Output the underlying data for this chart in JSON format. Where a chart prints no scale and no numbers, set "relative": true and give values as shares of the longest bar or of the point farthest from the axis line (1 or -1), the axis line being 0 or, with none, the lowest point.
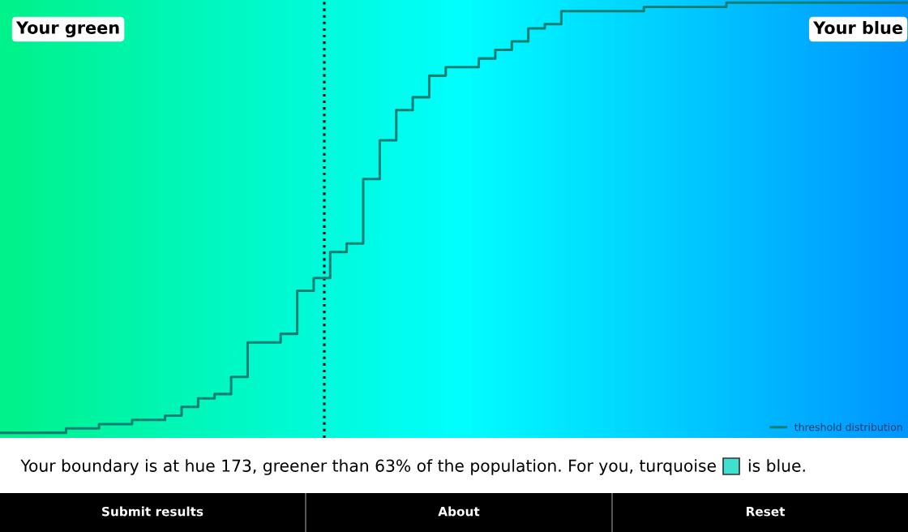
{
  "chart_data": {
    "type": "step",
    "relative": true,
    "categories": [
      null,
      null,
      null,
      null,
      null,
      null,
      null,
      null,
      null,
      null,
      null,
      null,
      null,
      null,
      null,
      null,
      null,
      null,
      null,
      null,
      null,
      null,
      null,
      null,
      null,
      null,
      null,
      null,
      null,
      null,
      null,
      null,
      null,
      null,
      null,
      null,
      null,
      null,
      null,
      null,
      null,
      null,
      null,
      null,
      null,
      null,
      null,
      null,
      null,
      null,
      null,
      null,
      null,
      null,
      null,
      null
    ],
    "series": [
      {
        "name": "threshold distribution",
        "color": "#137f75",
        "values": [
          0,
          0,
          0,
          0,
          0.01,
          0.01,
          0.02,
          0.02,
          0.03,
          0.03,
          0.04,
          0.06,
          0.08,
          0.09,
          0.13,
          0.21,
          0.21,
          0.23,
          0.33,
          0.36,
          0.42,
          0.44,
          0.59,
          0.68,
          0.75,
          0.78,
          0.83,
          0.85,
          0.85,
          0.87,
          0.89,
          0.91,
          0.94,
          0.95,
          0.98,
          0.98,
          0.98,
          0.98,
          0.98,
          0.99,
          0.99,
          0.99,
          0.99,
          0.99,
          1,
          1,
          1,
          1,
          1,
          1,
          1,
          1,
          1,
          1,
          1,
          1
        ]
      }
    ],
    "legend": "bottom right",
    "grid": false,
    "annotations": [
      "Your green",
      "Your blue",
      "Your boundary is at hue 173, greener than 63% of the population. For you, turquoise",
      "is blue.",
      "Submit results",
      "About",
      "Reset"
    ]
  }
}
